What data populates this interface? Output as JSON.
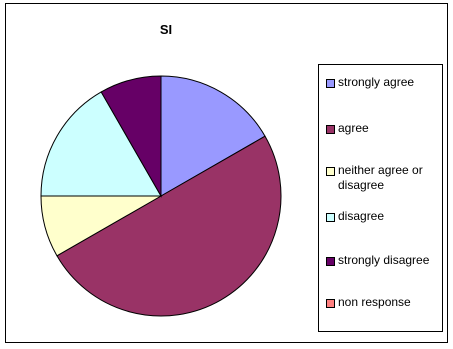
{
  "chart_data": {
    "type": "pie",
    "title": "SI",
    "legend_position": "right",
    "slices": [
      {
        "label": "strongly agree",
        "value": 16.7,
        "color": "#9999ff"
      },
      {
        "label": "agree",
        "value": 50.0,
        "color": "#993366"
      },
      {
        "label": "neither agree or disagree",
        "value": 8.3,
        "color": "#ffffcc"
      },
      {
        "label": "disagree",
        "value": 16.7,
        "color": "#ccffff"
      },
      {
        "label": "strongly disagree",
        "value": 8.3,
        "color": "#660066"
      },
      {
        "label": "non response",
        "value": 0,
        "color": "#ff8080"
      }
    ]
  }
}
